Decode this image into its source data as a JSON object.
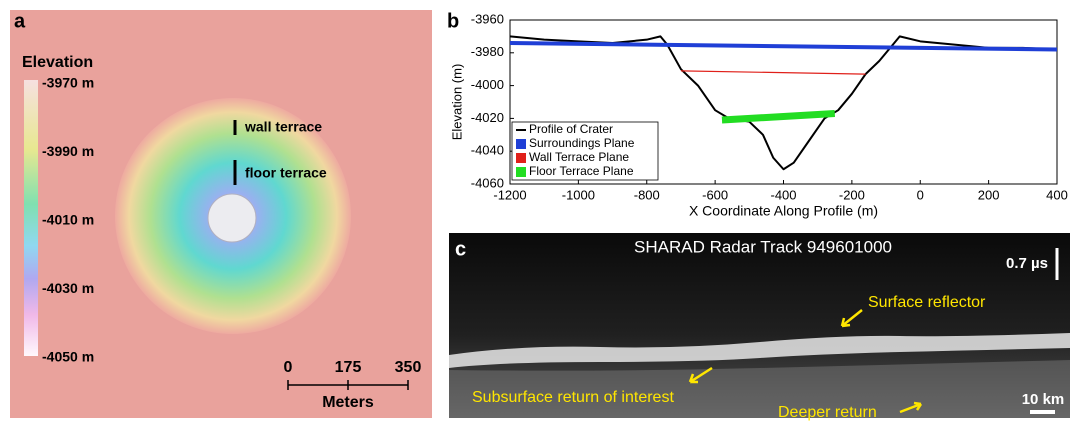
{
  "panel_a": {
    "label": "a",
    "colorbar": {
      "title": "Elevation",
      "ticks": [
        {
          "value": -3970,
          "label": "-3970 m"
        },
        {
          "value": -3990,
          "label": "-3990 m"
        },
        {
          "value": -4010,
          "label": "-4010 m"
        },
        {
          "value": -4030,
          "label": "-4030 m"
        },
        {
          "value": -4050,
          "label": "-4050 m"
        }
      ]
    },
    "annotations": [
      "wall terrace",
      "floor terrace"
    ],
    "scale_bar": {
      "ticks": [
        0,
        175,
        350
      ],
      "unit": "Meters"
    }
  },
  "chart_data": [
    {
      "type": "line",
      "label": "b",
      "xlabel": "X Coordinate Along Profile (m)",
      "ylabel": "Elevation (m)",
      "xlim": [
        -1200,
        400
      ],
      "ylim": [
        -4060,
        -3960
      ],
      "xticks": [
        -1200,
        -1000,
        -800,
        -600,
        -400,
        -200,
        0,
        200,
        400
      ],
      "yticks": [
        -3960,
        -3980,
        -4000,
        -4020,
        -4040,
        -4060
      ],
      "legend": "bottom-left",
      "series": [
        {
          "name": "Profile of Crater",
          "color": "#000000",
          "width": 2,
          "x": [
            -1200,
            -1100,
            -1000,
            -900,
            -800,
            -760,
            -740,
            -700,
            -650,
            -600,
            -560,
            -500,
            -460,
            -430,
            -400,
            -370,
            -330,
            -280,
            -240,
            -200,
            -160,
            -120,
            -80,
            -60,
            0,
            100,
            200,
            300,
            400
          ],
          "values": [
            -3970,
            -3972,
            -3973,
            -3974,
            -3972,
            -3970,
            -3975,
            -3990,
            -4000,
            -4015,
            -4020,
            -4022,
            -4030,
            -4044,
            -4051,
            -4047,
            -4035,
            -4020,
            -4015,
            -4005,
            -3993,
            -3985,
            -3975,
            -3970,
            -3973,
            -3975,
            -3977,
            -3977,
            -3978
          ]
        },
        {
          "name": "Surroundings Plane",
          "color": "#1f3fd6",
          "width": 4,
          "x": [
            -1200,
            400
          ],
          "values": [
            -3974,
            -3978
          ]
        },
        {
          "name": "Wall Terrace Plane",
          "color": "#e0201a",
          "width": 1.2,
          "x": [
            -700,
            -160
          ],
          "values": [
            -3991,
            -3993
          ]
        },
        {
          "name": "Floor Terrace Plane",
          "color": "#22dd22",
          "width": 7,
          "x": [
            -580,
            -250
          ],
          "values": [
            -4021,
            -4017
          ]
        }
      ]
    }
  ],
  "panel_c": {
    "label": "c",
    "title": "SHARAD Radar Track 949601000",
    "time_scale": "0.7 µs",
    "distance_scale": "10 km",
    "annotations": [
      "Surface reflector",
      "Subsurface return of interest",
      "Deeper return"
    ]
  }
}
